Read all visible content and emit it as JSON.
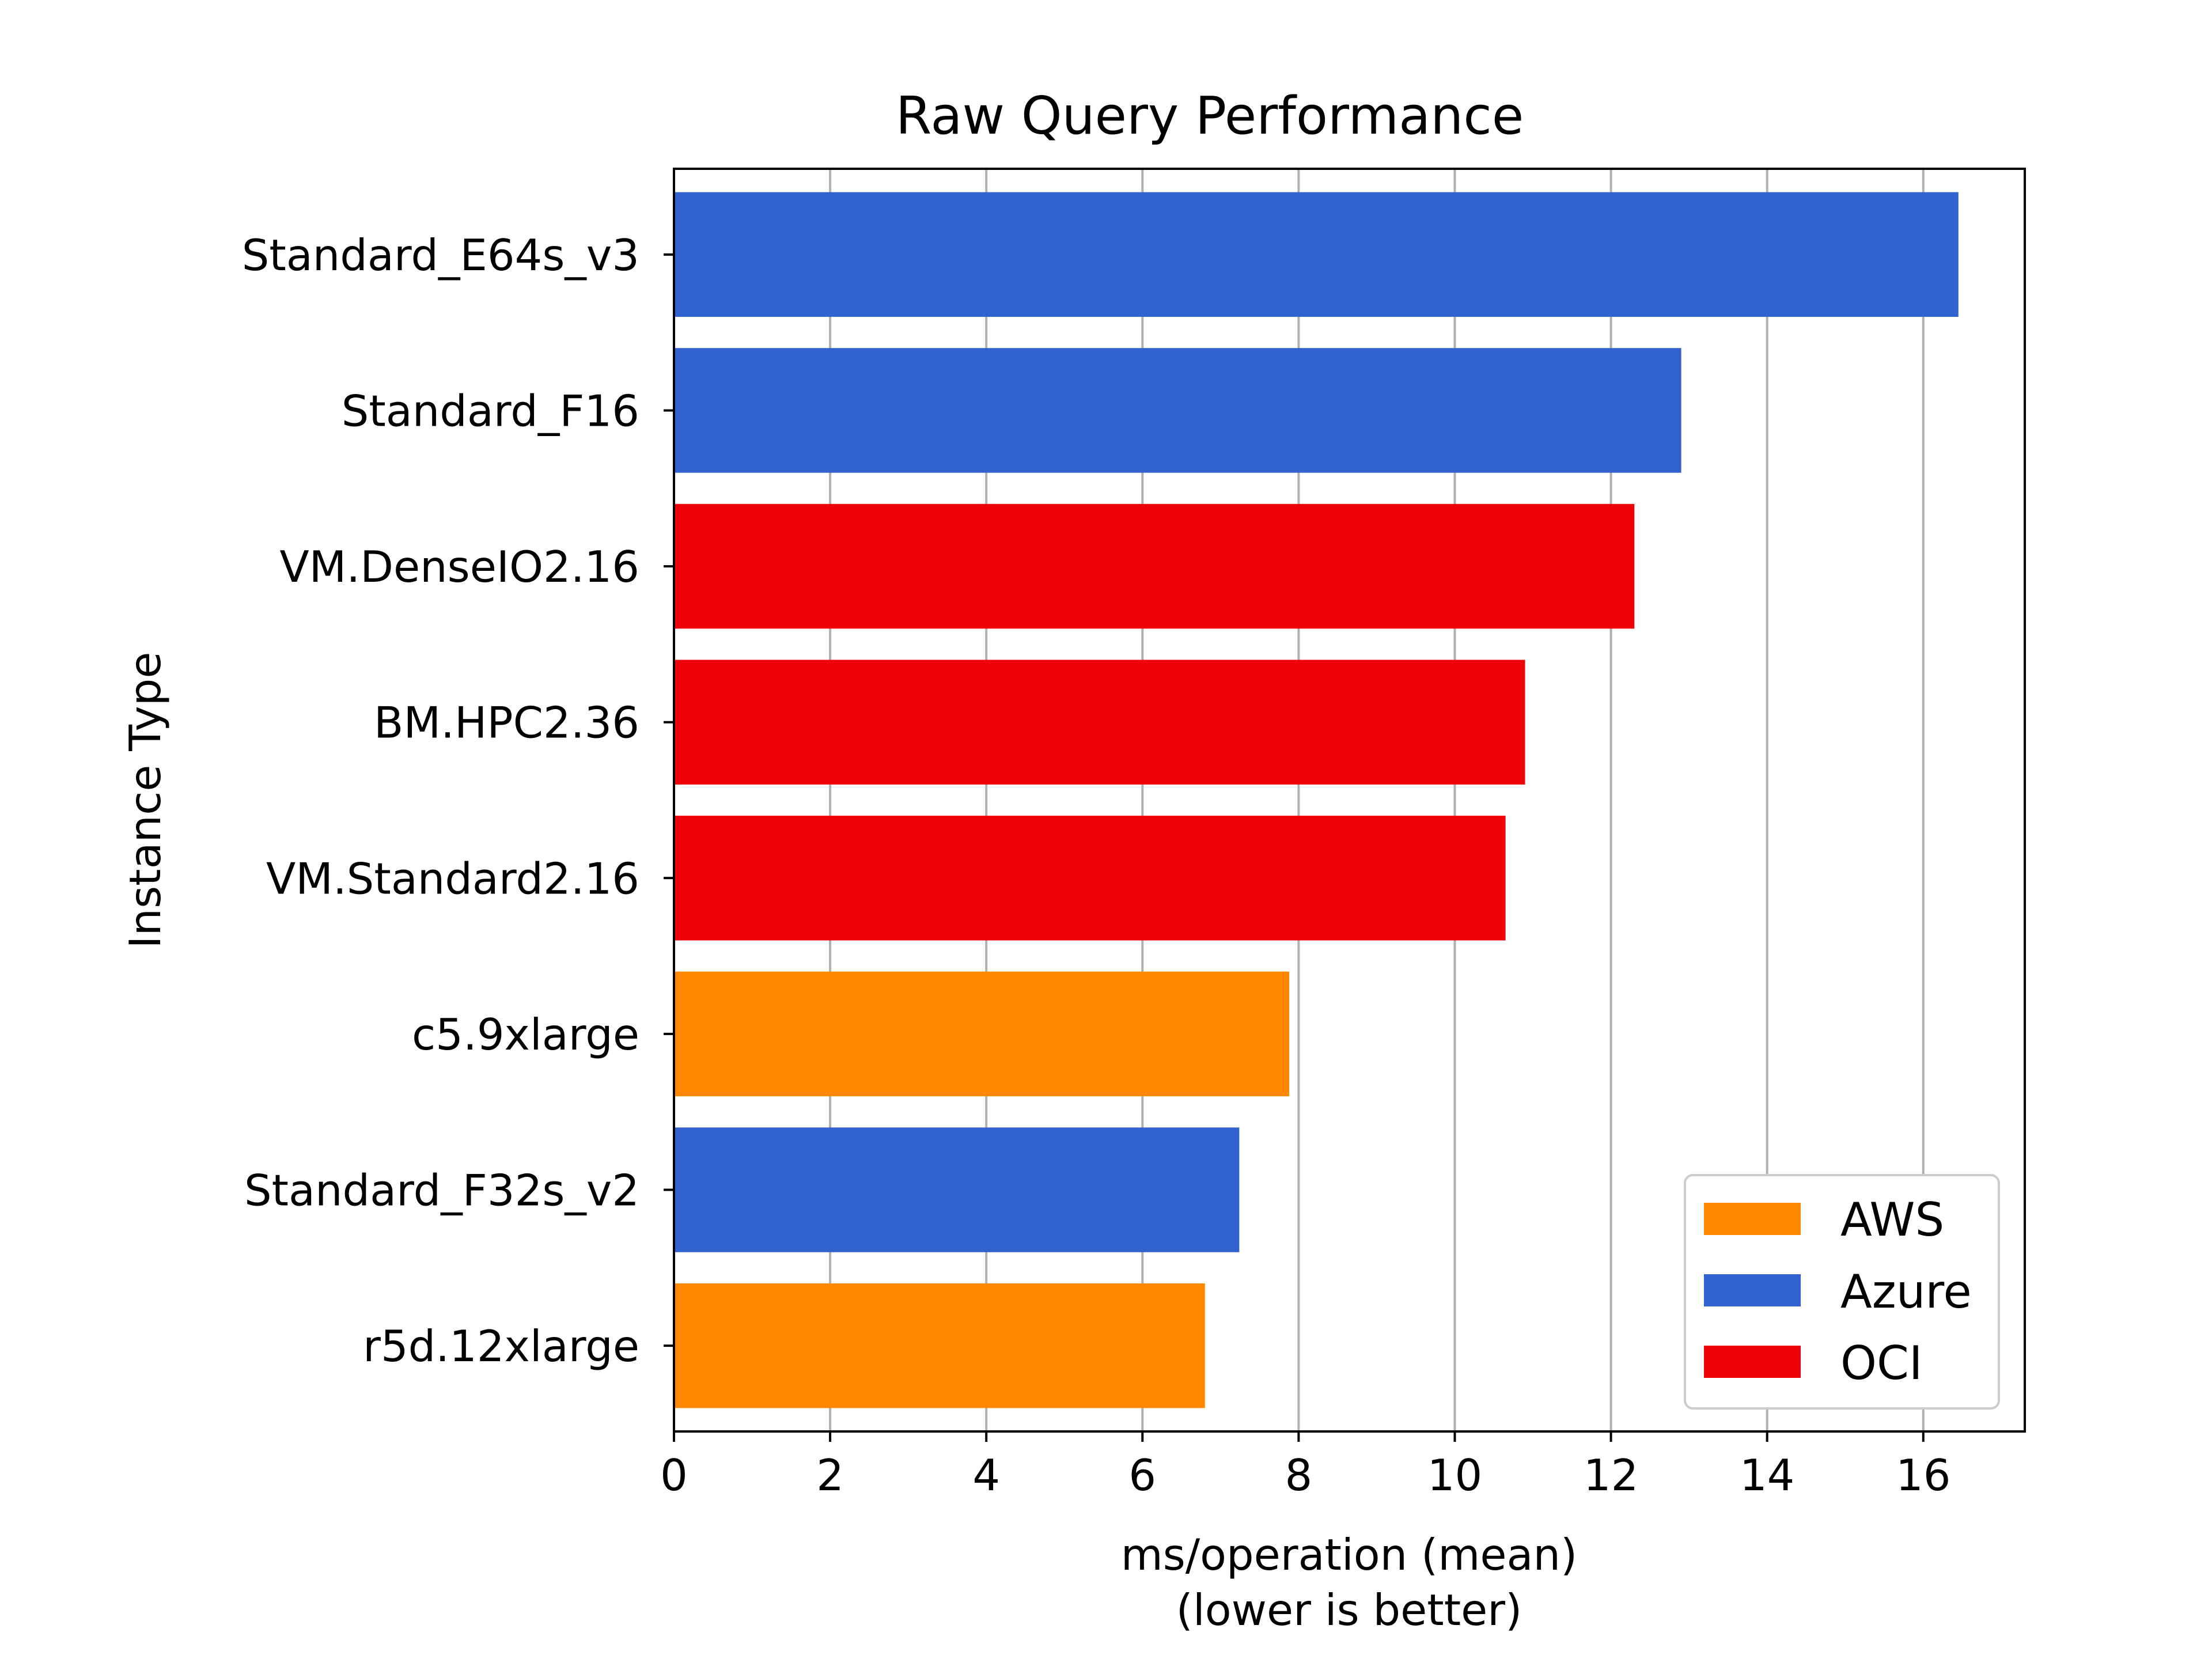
{
  "chart_data": {
    "type": "bar",
    "orientation": "horizontal",
    "title": "Raw Query Performance",
    "xlabel_line1": "ms/operation (mean)",
    "xlabel_line2": "(lower is better)",
    "ylabel": "Instance Type",
    "xlim": [
      0,
      17.3
    ],
    "xticks": [
      0,
      2,
      4,
      6,
      8,
      10,
      12,
      14,
      16
    ],
    "grid": "vertical",
    "legend_position": "lower-right",
    "categories": [
      "Standard_E64s_v3",
      "Standard_F16",
      "VM.DenseIO2.16",
      "BM.HPC2.36",
      "VM.Standard2.16",
      "c5.9xlarge",
      "Standard_F32s_v2",
      "r5d.12xlarge"
    ],
    "values": [
      16.45,
      12.9,
      12.3,
      10.9,
      10.65,
      7.88,
      7.24,
      6.8
    ],
    "providers": [
      "Azure",
      "Azure",
      "OCI",
      "OCI",
      "OCI",
      "AWS",
      "Azure",
      "AWS"
    ],
    "series": [
      {
        "name": "AWS",
        "color": "#ff8800"
      },
      {
        "name": "Azure",
        "color": "#3262cf"
      },
      {
        "name": "OCI",
        "color": "#f0020a"
      }
    ]
  }
}
